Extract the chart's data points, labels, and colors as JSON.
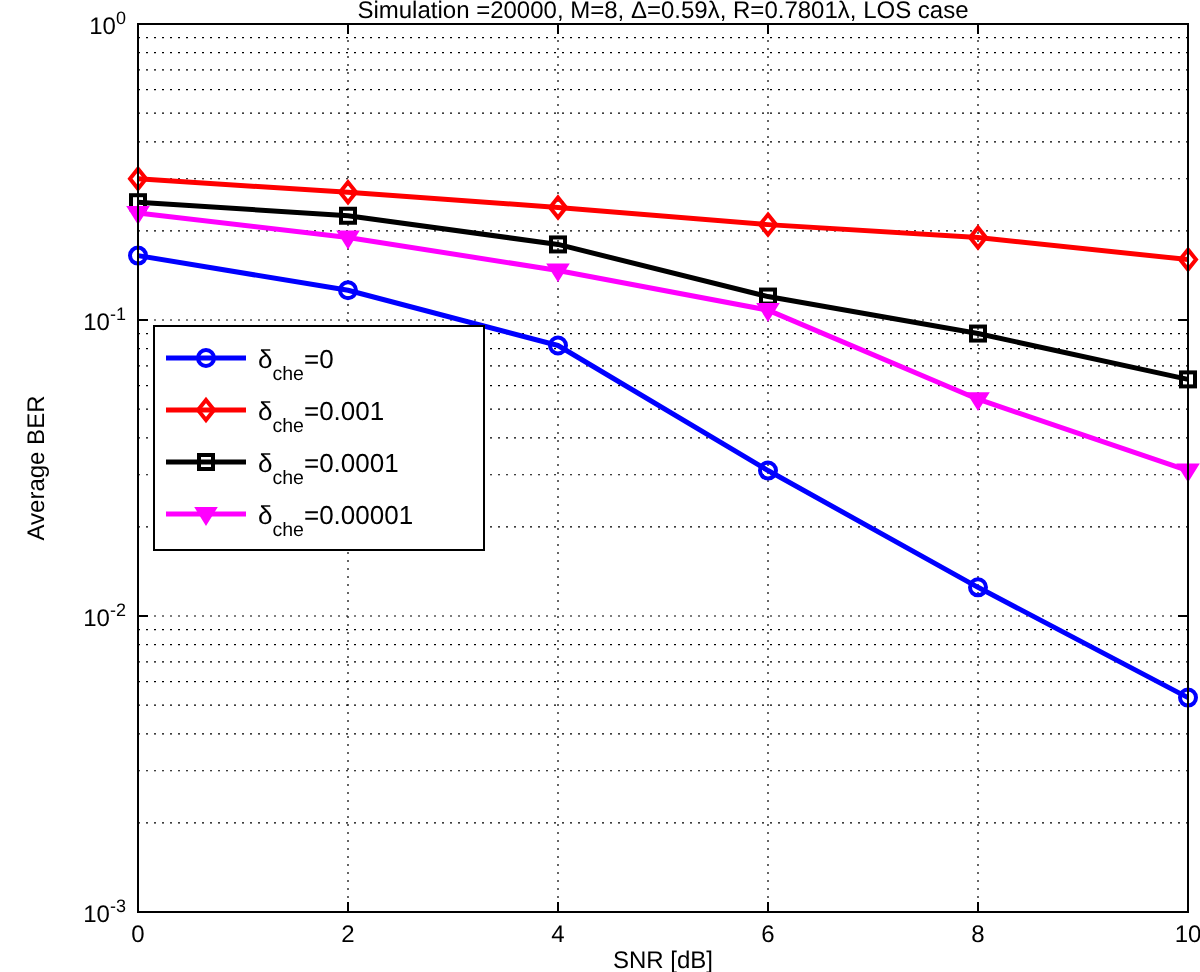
{
  "chart_data": {
    "type": "line",
    "title": "Simulation =20000, M=8, Δ=0.59λ, R=0.7801λ,  LOS case",
    "xlabel": "SNR [dB]",
    "ylabel": "Average BER",
    "x": [
      0,
      2,
      4,
      6,
      8,
      10
    ],
    "xlim": [
      0,
      10
    ],
    "xticks": [
      0,
      2,
      4,
      6,
      8,
      10
    ],
    "ylim": [
      0.001,
      1
    ],
    "yticks": [
      {
        "value": 1,
        "label": "10$^{0}$"
      },
      {
        "value": 0.1,
        "label": "10$^{-1}$"
      },
      {
        "value": 0.01,
        "label": "10$^{-2}$"
      },
      {
        "value": 0.001,
        "label": "10$^{-3}$"
      }
    ],
    "log": "y",
    "grid": true,
    "legend": "center left",
    "line_style": "solid",
    "series": [
      {
        "name": "δ$_{che}$=0",
        "color": "#0000ff",
        "marker": "circle",
        "values": [
          0.165,
          0.126,
          0.082,
          0.031,
          0.0125,
          0.0053
        ]
      },
      {
        "name": "δ$_{che}$=0.001",
        "color": "#ff0000",
        "marker": "diamond",
        "values": [
          0.3,
          0.27,
          0.24,
          0.21,
          0.19,
          0.16
        ]
      },
      {
        "name": "δ$_{che}$=0.0001",
        "color": "#000000",
        "marker": "square",
        "values": [
          0.25,
          0.225,
          0.18,
          0.12,
          0.09,
          0.063
        ]
      },
      {
        "name": "δ$_{che}$=0.00001",
        "color": "#ff00ff",
        "marker": "triangle",
        "values": [
          0.23,
          0.19,
          0.147,
          0.108,
          0.054,
          0.031
        ]
      }
    ]
  }
}
